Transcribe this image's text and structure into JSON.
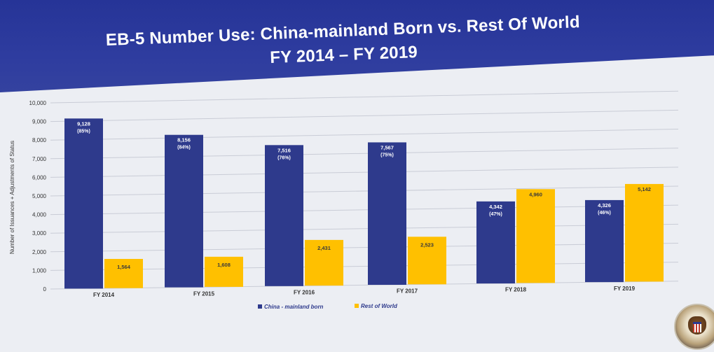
{
  "title_line1": "EB-5 Number Use: China-mainland Born vs. Rest Of World",
  "title_line2": "FY 2014 – FY 2019",
  "colors": {
    "banner": "#2b3a9c",
    "china": "#2e3a8c",
    "rest": "#ffc000",
    "grid": "#c9ccd6",
    "axis_text": "#333333"
  },
  "chart_data": {
    "type": "bar",
    "title": "EB-5 Number Use: China-mainland Born vs. Rest Of World",
    "subtitle": "FY 2014 – FY 2019",
    "xlabel": "",
    "ylabel": "Number of Issuances + Adjustments of Status",
    "ylim": [
      0,
      10000
    ],
    "yticks": [
      0,
      1000,
      2000,
      3000,
      4000,
      5000,
      6000,
      7000,
      8000,
      9000,
      10000
    ],
    "ytick_labels": [
      "0",
      "1,000",
      "2,000",
      "3,000",
      "4,000",
      "5,000",
      "6,000",
      "7,000",
      "8,000",
      "9,000",
      "10,000"
    ],
    "categories": [
      "FY 2014",
      "FY 2015",
      "FY 2016",
      "FY 2017",
      "FY 2018",
      "FY 2019"
    ],
    "series": [
      {
        "name": "China - mainland born",
        "values": [
          9128,
          8156,
          7516,
          7567,
          4342,
          4326
        ],
        "labels": [
          "9,128",
          "8,156",
          "7,516",
          "7,567",
          "4,342",
          "4,326"
        ],
        "shares": [
          "(85%)",
          "(84%)",
          "(76%)",
          "(75%)",
          "(47%)",
          "(46%)"
        ]
      },
      {
        "name": "Rest of World",
        "values": [
          1564,
          1608,
          2431,
          2523,
          4960,
          5142
        ],
        "labels": [
          "1,564",
          "1,608",
          "2,431",
          "2,523",
          "4,960",
          "5,142"
        ]
      }
    ],
    "grid": true,
    "legend_position": "bottom"
  }
}
